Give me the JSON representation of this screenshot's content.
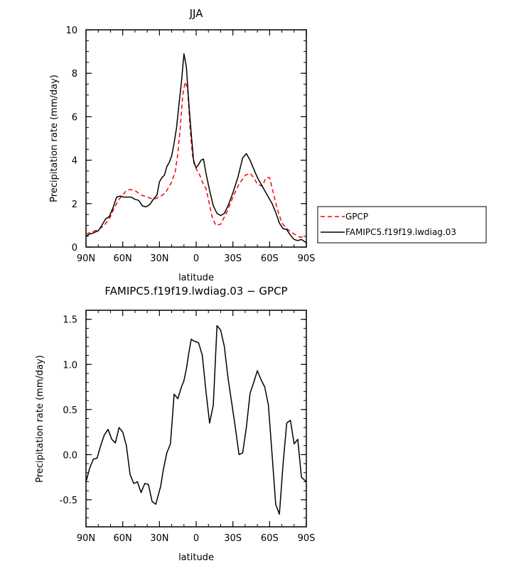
{
  "chart_data": [
    {
      "type": "line",
      "title": "JJA",
      "xlabel": "latitude",
      "ylabel": "Precipitation rate (mm/day)",
      "xlim": [
        90,
        -90
      ],
      "ylim": [
        0,
        10
      ],
      "xticks": [
        90,
        60,
        30,
        0,
        -30,
        -60,
        -90
      ],
      "xtick_labels": [
        "90N",
        "60N",
        "30N",
        "0",
        "30S",
        "60S",
        "90S"
      ],
      "yticks": [
        0,
        2,
        4,
        6,
        8,
        10
      ],
      "ytick_labels": [
        "0",
        "2",
        "4",
        "6",
        "8",
        "10"
      ],
      "legend_position": "right",
      "series": [
        {
          "name": "GPCP",
          "color": "#ff0000",
          "style": "dashed",
          "x": [
            90,
            85,
            80,
            75,
            70,
            67,
            63,
            60,
            57,
            54,
            50,
            45,
            40,
            35,
            30,
            25,
            20,
            17,
            15,
            13,
            11,
            9,
            7,
            5,
            3,
            0,
            -3,
            -5,
            -8,
            -10,
            -13,
            -16,
            -20,
            -25,
            -30,
            -35,
            -40,
            -44,
            -47,
            -50,
            -54,
            -57,
            -60,
            -63,
            -66,
            -70,
            -75,
            -80,
            -85,
            -90
          ],
          "y": [
            0.6,
            0.7,
            0.8,
            1.0,
            1.4,
            1.8,
            2.2,
            2.4,
            2.6,
            2.65,
            2.6,
            2.4,
            2.3,
            2.2,
            2.3,
            2.5,
            3.0,
            3.5,
            4.3,
            5.5,
            7.0,
            7.6,
            7.3,
            5.5,
            4.2,
            3.6,
            3.3,
            3.0,
            2.7,
            2.2,
            1.4,
            1.0,
            1.05,
            1.6,
            2.3,
            2.9,
            3.3,
            3.4,
            3.2,
            2.9,
            2.8,
            3.2,
            3.2,
            2.5,
            1.8,
            1.1,
            0.8,
            0.6,
            0.45,
            0.5
          ]
        },
        {
          "name": "FAMIPC5.f19f19.lwdiag.03",
          "color": "#000000",
          "style": "solid",
          "x": [
            90,
            87,
            84,
            80,
            77,
            74,
            71,
            68,
            65,
            62,
            59,
            56,
            53,
            50,
            47,
            44,
            41,
            38,
            35,
            32,
            30,
            28,
            26,
            24,
            22,
            20,
            18,
            16,
            14,
            12,
            10,
            8,
            6,
            4,
            2,
            0,
            -2,
            -4,
            -6,
            -8,
            -11,
            -14,
            -17,
            -20,
            -23,
            -26,
            -30,
            -34,
            -38,
            -41,
            -44,
            -47,
            -50,
            -53,
            -56,
            -59,
            -62,
            -65,
            -68,
            -71,
            -74,
            -77,
            -80,
            -83,
            -86,
            -90
          ],
          "y": [
            0.5,
            0.6,
            0.65,
            0.75,
            1.0,
            1.3,
            1.4,
            1.8,
            2.3,
            2.35,
            2.3,
            2.3,
            2.3,
            2.2,
            2.15,
            1.9,
            1.85,
            1.95,
            2.2,
            2.4,
            3.0,
            3.2,
            3.3,
            3.7,
            3.9,
            4.2,
            4.8,
            5.5,
            6.6,
            7.6,
            8.9,
            8.3,
            6.6,
            5.2,
            3.9,
            3.65,
            3.8,
            4.0,
            4.05,
            3.4,
            2.6,
            1.9,
            1.55,
            1.45,
            1.55,
            1.9,
            2.5,
            3.2,
            4.1,
            4.3,
            4.0,
            3.6,
            3.2,
            2.9,
            2.6,
            2.3,
            2.0,
            1.6,
            1.1,
            0.85,
            0.8,
            0.55,
            0.35,
            0.3,
            0.35,
            0.2
          ]
        }
      ]
    },
    {
      "type": "line",
      "title": "FAMIPC5.f19f19.lwdiag.03 − GPCP",
      "xlabel": "latitude",
      "ylabel": "Precipitation rate (mm/day)",
      "xlim": [
        90,
        -90
      ],
      "ylim": [
        -0.8,
        1.6
      ],
      "xticks": [
        90,
        60,
        30,
        0,
        -30,
        -60,
        -90
      ],
      "xtick_labels": [
        "90N",
        "60N",
        "30N",
        "0",
        "30S",
        "60S",
        "90S"
      ],
      "yticks": [
        -0.5,
        0.0,
        0.5,
        1.0,
        1.5
      ],
      "ytick_labels": [
        "-0.5",
        "0.0",
        "0.5",
        "1.0",
        "1.5"
      ],
      "series": [
        {
          "color": "#000000",
          "style": "solid",
          "x": [
            90,
            87,
            84,
            81,
            78,
            75,
            72,
            69,
            66,
            63,
            60,
            57,
            54,
            51,
            48,
            45,
            42,
            39,
            36,
            33,
            31,
            29,
            27,
            24,
            21,
            18,
            15,
            12,
            10,
            8,
            6,
            4,
            2,
            0,
            -2,
            -5,
            -8,
            -11,
            -14,
            -17,
            -20,
            -23,
            -26,
            -29,
            -32,
            -35,
            -38,
            -41,
            -44,
            -47,
            -50,
            -53,
            -56,
            -59,
            -62,
            -65,
            -68,
            -71,
            -74,
            -77,
            -80,
            -83,
            -86,
            -90
          ],
          "y": [
            -0.3,
            -0.15,
            -0.05,
            -0.04,
            0.1,
            0.22,
            0.28,
            0.17,
            0.13,
            0.3,
            0.25,
            0.1,
            -0.22,
            -0.32,
            -0.3,
            -0.42,
            -0.32,
            -0.33,
            -0.52,
            -0.55,
            -0.45,
            -0.35,
            -0.18,
            0.02,
            0.12,
            0.67,
            0.62,
            0.75,
            0.82,
            0.95,
            1.13,
            1.28,
            1.26,
            1.25,
            1.24,
            1.1,
            0.7,
            0.35,
            0.55,
            1.43,
            1.38,
            1.2,
            0.85,
            0.58,
            0.3,
            0.0,
            0.02,
            0.3,
            0.68,
            0.8,
            0.93,
            0.83,
            0.75,
            0.55,
            0.0,
            -0.55,
            -0.66,
            -0.1,
            0.35,
            0.38,
            0.12,
            0.17,
            -0.25,
            -0.3
          ]
        }
      ]
    }
  ]
}
